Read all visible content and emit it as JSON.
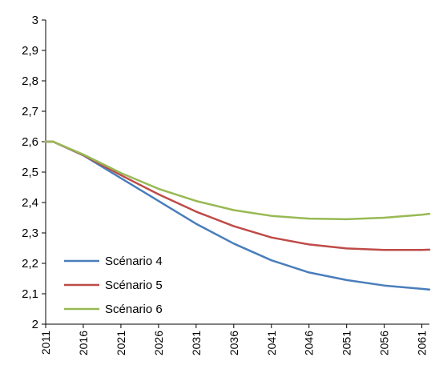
{
  "chart_data": {
    "type": "line",
    "title": "",
    "xlabel": "",
    "ylabel": "",
    "ylim": [
      2,
      3
    ],
    "yticks": [
      "2",
      "2,1",
      "2,2",
      "2,3",
      "2,4",
      "2,5",
      "2,6",
      "2,7",
      "2,8",
      "2,9",
      "3"
    ],
    "xlim": [
      2011,
      2062
    ],
    "xticks": [
      "2011",
      "2016",
      "2021",
      "2026",
      "2031",
      "2036",
      "2041",
      "2046",
      "2051",
      "2056",
      "2061"
    ],
    "grid": false,
    "legend_position": "bottom-left",
    "x": [
      2011,
      2012,
      2016,
      2021,
      2026,
      2031,
      2036,
      2041,
      2046,
      2051,
      2056,
      2061,
      2062
    ],
    "series": [
      {
        "name": "Scénario 4",
        "color": "#4a7ebb",
        "values": [
          2.6,
          2.6,
          2.555,
          2.48,
          2.405,
          2.33,
          2.265,
          2.21,
          2.17,
          2.145,
          2.127,
          2.116,
          2.114
        ]
      },
      {
        "name": "Scénario 5",
        "color": "#be4b48",
        "values": [
          2.6,
          2.6,
          2.556,
          2.49,
          2.427,
          2.37,
          2.322,
          2.285,
          2.262,
          2.249,
          2.244,
          2.244,
          2.245
        ]
      },
      {
        "name": "Scénario 6",
        "color": "#98b954",
        "values": [
          2.6,
          2.6,
          2.558,
          2.497,
          2.445,
          2.405,
          2.375,
          2.356,
          2.347,
          2.345,
          2.35,
          2.36,
          2.363
        ]
      }
    ]
  }
}
